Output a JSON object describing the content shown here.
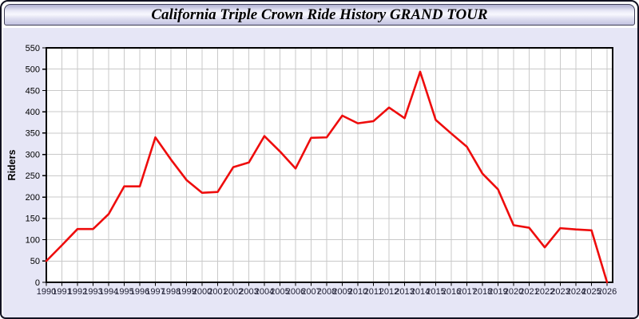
{
  "window": {
    "title": "California Triple Crown Ride History GRAND TOUR"
  },
  "chart_data": {
    "type": "line",
    "title": "California Triple Crown Ride History GRAND TOUR",
    "xlabel": "",
    "ylabel": "Riders",
    "x": [
      1990,
      1991,
      1992,
      1993,
      1994,
      1995,
      1996,
      1997,
      1998,
      1999,
      2000,
      2001,
      2002,
      2003,
      2004,
      2005,
      2006,
      2007,
      2008,
      2009,
      2010,
      2011,
      2012,
      2013,
      2014,
      2015,
      2016,
      2017,
      2018,
      2019,
      2020,
      2021,
      2022,
      2023,
      2024,
      2025,
      2026
    ],
    "values": [
      50,
      87,
      125,
      125,
      160,
      225,
      225,
      340,
      288,
      240,
      210,
      212,
      270,
      281,
      343,
      307,
      267,
      339,
      340,
      391,
      373,
      378,
      410,
      385,
      494,
      381,
      349,
      318,
      255,
      218,
      134,
      128,
      82,
      127,
      124,
      122,
      0
    ],
    "series_name": "Riders",
    "ylim": [
      0,
      550
    ],
    "yticks": [
      0,
      50,
      100,
      150,
      200,
      250,
      300,
      350,
      400,
      450,
      500,
      550
    ],
    "grid": true,
    "legend": "none",
    "line_color": "#ee0c0c",
    "grid_color": "#c9c9c9",
    "plot_bg": "#ffffff",
    "axis_color": "#000000",
    "x_label_color": "#1c1c30",
    "y_label_color": "#000000"
  }
}
